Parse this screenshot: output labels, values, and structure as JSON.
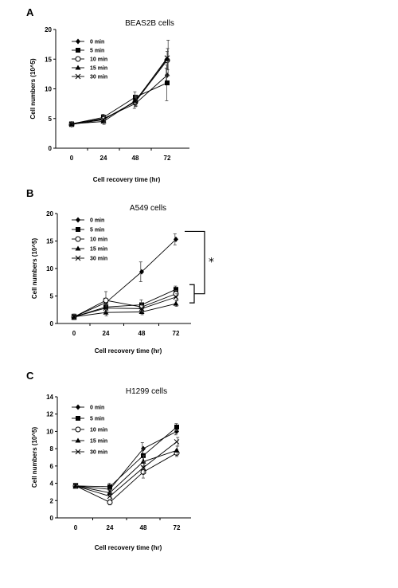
{
  "chart_data": [
    {
      "type": "line",
      "panel": "A",
      "title": "BEAS2B cells",
      "xlabel": "Cell recovery time (hr)",
      "ylabel": "Cell numbers (10^5)",
      "categories": [
        "0",
        "24",
        "48",
        "72"
      ],
      "ylim": [
        0,
        20
      ],
      "yticks": [
        "0",
        "5",
        "10",
        "15",
        "20"
      ],
      "series": [
        {
          "name": "0 min",
          "marker": "diamond",
          "values": [
            4.1,
            5.0,
            7.5,
            12.3
          ],
          "errors": [
            0.3,
            0.6,
            0.8,
            1.2
          ]
        },
        {
          "name": "5 min",
          "marker": "square",
          "values": [
            4.1,
            5.2,
            8.6,
            11.0
          ],
          "errors": [
            0.3,
            0.5,
            0.9,
            3.0
          ]
        },
        {
          "name": "10 min",
          "marker": "circle-open",
          "values": [
            4.0,
            4.9,
            7.8,
            14.8
          ],
          "errors": [
            0.3,
            0.5,
            0.8,
            1.5
          ]
        },
        {
          "name": "15 min",
          "marker": "triangle",
          "values": [
            4.1,
            4.5,
            8.0,
            15.0
          ],
          "errors": [
            0.3,
            0.5,
            0.9,
            1.8
          ]
        },
        {
          "name": "30 min",
          "marker": "cross",
          "values": [
            4.0,
            4.8,
            7.9,
            15.2
          ],
          "errors": [
            0.3,
            0.5,
            0.8,
            3.0
          ]
        }
      ],
      "annotations": []
    },
    {
      "type": "line",
      "panel": "B",
      "title": "A549 cells",
      "xlabel": "Cell recovery time (hr)",
      "ylabel": "Cell numbers (10^5)",
      "categories": [
        "0",
        "24",
        "48",
        "72"
      ],
      "ylim": [
        0,
        20
      ],
      "yticks": [
        "0",
        "5",
        "10",
        "15",
        "20"
      ],
      "series": [
        {
          "name": "0 min",
          "marker": "diamond",
          "values": [
            1.2,
            3.8,
            9.4,
            15.3
          ],
          "errors": [
            0.5,
            0.8,
            1.8,
            1.0
          ]
        },
        {
          "name": "5 min",
          "marker": "square",
          "values": [
            1.2,
            3.0,
            3.4,
            6.2
          ],
          "errors": [
            0.5,
            0.8,
            0.9,
            0.6
          ]
        },
        {
          "name": "10 min",
          "marker": "circle-open",
          "values": [
            1.2,
            4.2,
            3.0,
            5.4
          ],
          "errors": [
            0.5,
            1.6,
            0.8,
            0.6
          ]
        },
        {
          "name": "15 min",
          "marker": "triangle",
          "values": [
            1.2,
            2.0,
            2.1,
            3.6
          ],
          "errors": [
            0.5,
            0.6,
            0.5,
            0.5
          ]
        },
        {
          "name": "30 min",
          "marker": "cross",
          "values": [
            1.2,
            2.8,
            2.7,
            4.8
          ],
          "errors": [
            0.5,
            0.7,
            0.6,
            0.6
          ]
        }
      ],
      "annotations": [
        "*"
      ]
    },
    {
      "type": "line",
      "panel": "C",
      "title": "H1299 cells",
      "xlabel": "Cell recovery time (hr)",
      "ylabel": "Cell numbers (10^5)",
      "categories": [
        "0",
        "24",
        "48",
        "72"
      ],
      "ylim": [
        0,
        14
      ],
      "yticks": [
        "0",
        "2",
        "4",
        "6",
        "8",
        "10",
        "12",
        "14"
      ],
      "series": [
        {
          "name": "0 min",
          "marker": "diamond",
          "values": [
            3.7,
            3.3,
            8.0,
            10.0
          ],
          "errors": [
            0.3,
            0.4,
            0.7,
            0.4
          ]
        },
        {
          "name": "5 min",
          "marker": "square",
          "values": [
            3.7,
            3.6,
            7.2,
            10.5
          ],
          "errors": [
            0.3,
            0.4,
            0.8,
            0.4
          ]
        },
        {
          "name": "10 min",
          "marker": "circle-open",
          "values": [
            3.7,
            1.8,
            5.3,
            7.5
          ],
          "errors": [
            0.3,
            0.3,
            0.7,
            0.4
          ]
        },
        {
          "name": "15 min",
          "marker": "triangle",
          "values": [
            3.7,
            2.9,
            6.5,
            7.8
          ],
          "errors": [
            0.3,
            0.4,
            0.7,
            0.5
          ]
        },
        {
          "name": "30 min",
          "marker": "cross",
          "values": [
            3.7,
            2.5,
            5.8,
            8.8
          ],
          "errors": [
            0.3,
            0.4,
            0.7,
            0.5
          ]
        }
      ],
      "annotations": []
    }
  ]
}
